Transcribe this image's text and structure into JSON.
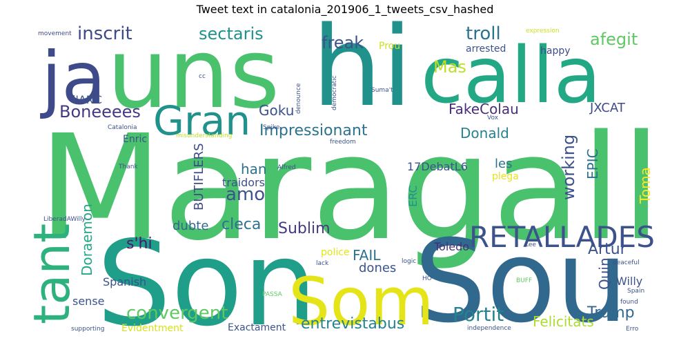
{
  "title": "Tweet text in catalonia_201906_1_tweets_csv_hashed",
  "words": [
    {
      "text": "Maragall",
      "color": "#4ac16d"
    },
    {
      "text": "uns",
      "color": "#4ac16d"
    },
    {
      "text": "hi",
      "color": "#21918c"
    },
    {
      "text": "ja",
      "color": "#3e4a89"
    },
    {
      "text": "calla",
      "color": "#22a884"
    },
    {
      "text": "Son",
      "color": "#1f9e89"
    },
    {
      "text": "Sou",
      "color": "#31688e"
    },
    {
      "text": "Som",
      "color": "#e5e419"
    },
    {
      "text": "tant",
      "color": "#2db27d"
    },
    {
      "text": "RETALLADES",
      "color": "#3b528b"
    },
    {
      "text": "Gran",
      "color": "#21918c"
    },
    {
      "text": "inscrit",
      "color": "#3e4a89"
    },
    {
      "text": "sectaris",
      "color": "#21918c"
    },
    {
      "text": "troll",
      "color": "#2c728e"
    },
    {
      "text": "afegit",
      "color": "#5ec962"
    },
    {
      "text": "freak",
      "color": "#3b528b"
    },
    {
      "text": "Mas",
      "color": "#bddf26"
    },
    {
      "text": "Boneeees",
      "color": "#443983"
    },
    {
      "text": "Goku",
      "color": "#3b528b"
    },
    {
      "text": "FakeColau",
      "color": "#472d7b"
    },
    {
      "text": "JXCAT",
      "color": "#3e4a89"
    },
    {
      "text": "Impressionant",
      "color": "#2c728e"
    },
    {
      "text": "Donald",
      "color": "#26828e"
    },
    {
      "text": "working",
      "color": "#3b528b"
    },
    {
      "text": "EPIC",
      "color": "#2c728e"
    },
    {
      "text": "BUTIFLERS",
      "color": "#3e4a89"
    },
    {
      "text": "han",
      "color": "#2c728e"
    },
    {
      "text": "amo",
      "color": "#3b528b"
    },
    {
      "text": "17DebatL6",
      "color": "#3b528b"
    },
    {
      "text": "les",
      "color": "#2c728e"
    },
    {
      "text": "Toma",
      "color": "#fde725"
    },
    {
      "text": "traidors",
      "color": "#3b528b"
    },
    {
      "text": "plega",
      "color": "#e5e419"
    },
    {
      "text": "ERC",
      "color": "#21918c"
    },
    {
      "text": "cleca",
      "color": "#2c728e"
    },
    {
      "text": "dubte",
      "color": "#31688e"
    },
    {
      "text": "Sublim",
      "color": "#443983"
    },
    {
      "text": "s'hi",
      "color": "#481a6c"
    },
    {
      "text": "Doraemon",
      "color": "#22a884"
    },
    {
      "text": "FAIL",
      "color": "#2c728e"
    },
    {
      "text": "dones",
      "color": "#3b528b"
    },
    {
      "text": "Artur",
      "color": "#3b528b"
    },
    {
      "text": "Quin",
      "color": "#3b528b"
    },
    {
      "text": "Toledo",
      "color": "#472d7b"
    },
    {
      "text": "Spanish",
      "color": "#3b528b"
    },
    {
      "text": "Willy",
      "color": "#3b528b"
    },
    {
      "text": "convergent",
      "color": "#5ec962"
    },
    {
      "text": "Portit",
      "color": "#26828e"
    },
    {
      "text": "Trump",
      "color": "#31688e"
    },
    {
      "text": "sense",
      "color": "#3b528b"
    },
    {
      "text": "entrevistabus",
      "color": "#26828e"
    },
    {
      "text": "Felicitats",
      "color": "#addc30"
    },
    {
      "text": "Evidentment",
      "color": "#d8e219"
    },
    {
      "text": "Exactament",
      "color": "#3b528b"
    },
    {
      "text": "l'ANC",
      "color": "#3b528b"
    },
    {
      "text": "Enric",
      "color": "#3b528b"
    },
    {
      "text": "Prou",
      "color": "#cde11d"
    },
    {
      "text": "arrested",
      "color": "#3b528b"
    },
    {
      "text": "happy",
      "color": "#3e4a89"
    },
    {
      "text": "movement",
      "color": "#3e4a89"
    },
    {
      "text": "expression",
      "color": "#cde11d"
    },
    {
      "text": "cc",
      "color": "#3b528b"
    },
    {
      "text": "denounce",
      "color": "#3b528b"
    },
    {
      "text": "democratic",
      "color": "#3b528b"
    },
    {
      "text": "Suma't",
      "color": "#3b528b"
    },
    {
      "text": "Vox",
      "color": "#3b528b"
    },
    {
      "text": "Spike",
      "color": "#3b528b"
    },
    {
      "text": "misunderstanding",
      "color": "#bddf26"
    },
    {
      "text": "freedom",
      "color": "#3b528b"
    },
    {
      "text": "Catalonia",
      "color": "#3b528b"
    },
    {
      "text": "Thank",
      "color": "#3b528b"
    },
    {
      "text": "Alfred",
      "color": "#3b528b"
    },
    {
      "text": "LiberadAWilly",
      "color": "#3b528b"
    },
    {
      "text": "police",
      "color": "#e5e419"
    },
    {
      "text": "lack",
      "color": "#3b528b"
    },
    {
      "text": "logic",
      "color": "#3b528b"
    },
    {
      "text": "Lee",
      "color": "#3b528b"
    },
    {
      "text": "peaceful",
      "color": "#3b528b"
    },
    {
      "text": "HO",
      "color": "#3b528b"
    },
    {
      "text": "BUFF",
      "color": "#5ec962"
    },
    {
      "text": "Spain",
      "color": "#3b528b"
    },
    {
      "text": "found",
      "color": "#3b528b"
    },
    {
      "text": "PASSA",
      "color": "#5ec962"
    },
    {
      "text": "supporting",
      "color": "#3b528b"
    },
    {
      "text": "independence",
      "color": "#3b528b"
    },
    {
      "text": "Erro",
      "color": "#3b528b"
    }
  ]
}
